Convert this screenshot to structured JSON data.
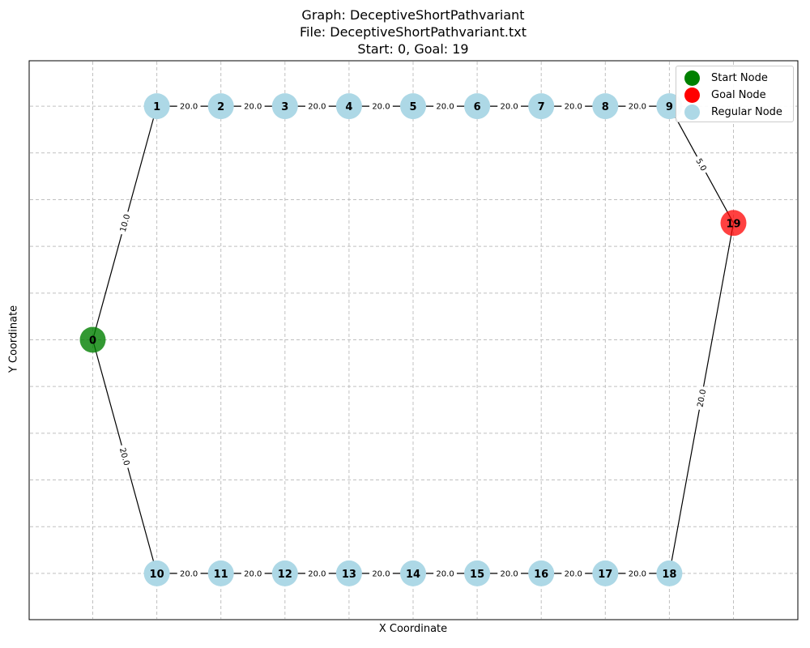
{
  "header": {
    "graph_title": "Graph: DeceptiveShortPathvariant",
    "file_line": "File: DeceptiveShortPathvariant.txt",
    "start_goal_line": "Start: 0, Goal: 19"
  },
  "axes": {
    "xlabel": "X Coordinate",
    "ylabel": "Y Coordinate",
    "grid": true
  },
  "legend": {
    "placement": "top-right",
    "items": [
      {
        "label": "Start Node",
        "color": "#008000"
      },
      {
        "label": "Goal Node",
        "color": "#ff0000"
      },
      {
        "label": "Regular Node",
        "color": "#add8e6"
      }
    ]
  },
  "colors": {
    "start": "#008000",
    "goal": "#ff0000",
    "regular": "#add8e6",
    "edge": "#000000",
    "grid": "#c0c0c0"
  },
  "chart_data": {
    "type": "network",
    "start": 0,
    "goal": 19,
    "nodes": [
      {
        "id": 0,
        "label": "0",
        "role": "start",
        "x": 0,
        "y": 0
      },
      {
        "id": 1,
        "label": "1",
        "role": "regular",
        "x": 1,
        "y": 4
      },
      {
        "id": 2,
        "label": "2",
        "role": "regular",
        "x": 2,
        "y": 4
      },
      {
        "id": 3,
        "label": "3",
        "role": "regular",
        "x": 3,
        "y": 4
      },
      {
        "id": 4,
        "label": "4",
        "role": "regular",
        "x": 4,
        "y": 4
      },
      {
        "id": 5,
        "label": "5",
        "role": "regular",
        "x": 5,
        "y": 4
      },
      {
        "id": 6,
        "label": "6",
        "role": "regular",
        "x": 6,
        "y": 4
      },
      {
        "id": 7,
        "label": "7",
        "role": "regular",
        "x": 7,
        "y": 4
      },
      {
        "id": 8,
        "label": "8",
        "role": "regular",
        "x": 8,
        "y": 4
      },
      {
        "id": 9,
        "label": "9",
        "role": "regular",
        "x": 9,
        "y": 4
      },
      {
        "id": 10,
        "label": "10",
        "role": "regular",
        "x": 1,
        "y": -4
      },
      {
        "id": 11,
        "label": "11",
        "role": "regular",
        "x": 2,
        "y": -4
      },
      {
        "id": 12,
        "label": "12",
        "role": "regular",
        "x": 3,
        "y": -4
      },
      {
        "id": 13,
        "label": "13",
        "role": "regular",
        "x": 4,
        "y": -4
      },
      {
        "id": 14,
        "label": "14",
        "role": "regular",
        "x": 5,
        "y": -4
      },
      {
        "id": 15,
        "label": "15",
        "role": "regular",
        "x": 6,
        "y": -4
      },
      {
        "id": 16,
        "label": "16",
        "role": "regular",
        "x": 7,
        "y": -4
      },
      {
        "id": 17,
        "label": "17",
        "role": "regular",
        "x": 8,
        "y": -4
      },
      {
        "id": 18,
        "label": "18",
        "role": "regular",
        "x": 9,
        "y": -4
      },
      {
        "id": 19,
        "label": "19",
        "role": "goal",
        "x": 10,
        "y": 2
      }
    ],
    "edges": [
      {
        "from": 0,
        "to": 1,
        "weight": "10.0"
      },
      {
        "from": 1,
        "to": 2,
        "weight": "20.0"
      },
      {
        "from": 2,
        "to": 3,
        "weight": "20.0"
      },
      {
        "from": 3,
        "to": 4,
        "weight": "20.0"
      },
      {
        "from": 4,
        "to": 5,
        "weight": "20.0"
      },
      {
        "from": 5,
        "to": 6,
        "weight": "20.0"
      },
      {
        "from": 6,
        "to": 7,
        "weight": "20.0"
      },
      {
        "from": 7,
        "to": 8,
        "weight": "20.0"
      },
      {
        "from": 8,
        "to": 9,
        "weight": "20.0"
      },
      {
        "from": 9,
        "to": 19,
        "weight": "5.0"
      },
      {
        "from": 0,
        "to": 10,
        "weight": "20.0"
      },
      {
        "from": 10,
        "to": 11,
        "weight": "20.0"
      },
      {
        "from": 11,
        "to": 12,
        "weight": "20.0"
      },
      {
        "from": 12,
        "to": 13,
        "weight": "20.0"
      },
      {
        "from": 13,
        "to": 14,
        "weight": "20.0"
      },
      {
        "from": 14,
        "to": 15,
        "weight": "20.0"
      },
      {
        "from": 15,
        "to": 16,
        "weight": "20.0"
      },
      {
        "from": 16,
        "to": 17,
        "weight": "20.0"
      },
      {
        "from": 17,
        "to": 18,
        "weight": "20.0"
      },
      {
        "from": 18,
        "to": 19,
        "weight": "20.0"
      }
    ]
  }
}
